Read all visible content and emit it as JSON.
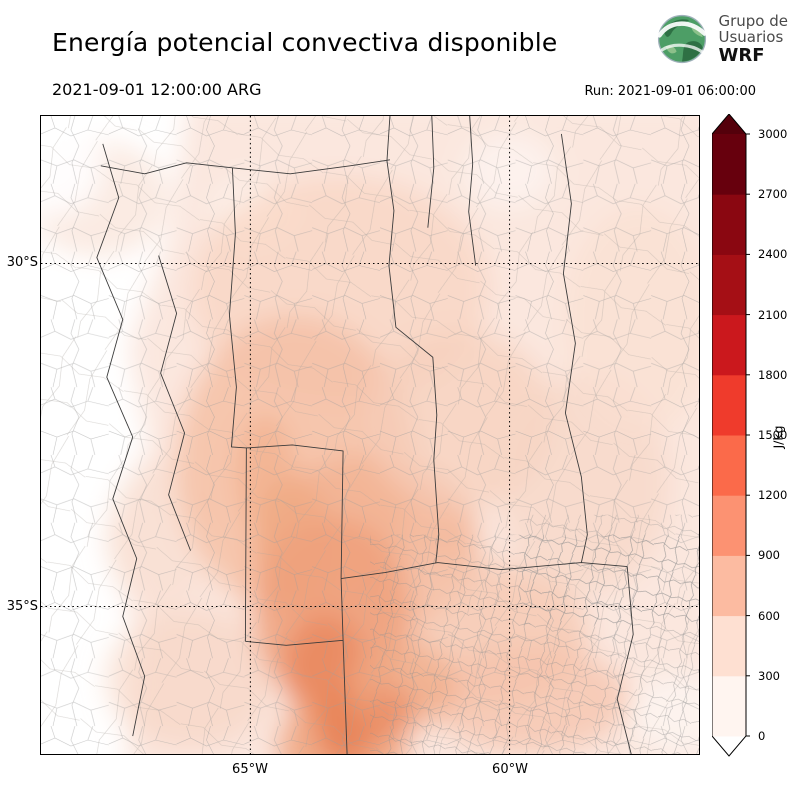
{
  "header": {
    "title": "Energía potencial convectiva disponible",
    "logo": {
      "line1": "Grupo de",
      "line2": "Usuarios",
      "line3": "WRF"
    }
  },
  "subheader": {
    "valid_time": "2021-09-01 12:00:00 ARG",
    "run_label": "Run: 2021-09-01 06:00:00"
  },
  "map": {
    "lat_ticks": [
      "30°S",
      "35°S"
    ],
    "lon_ticks": [
      "65°W",
      "60°W"
    ]
  },
  "colorbar": {
    "unit": "J/kg",
    "ticks": [
      "0",
      "300",
      "600",
      "900",
      "1200",
      "1500",
      "1800",
      "2100",
      "2400",
      "2700",
      "3000"
    ],
    "colors": [
      "#fff5f0",
      "#fee0d2",
      "#fcbba1",
      "#fc9272",
      "#fb6a4a",
      "#ef3b2c",
      "#cb181d",
      "#a50f15",
      "#8a0711",
      "#67000d"
    ],
    "under_color": "#ffffff",
    "over_color": "#54000b"
  },
  "chart_data": {
    "type": "heatmap",
    "title": "Energía potencial convectiva disponible",
    "variable_unit": "J/kg",
    "levels": [
      0,
      300,
      600,
      900,
      1200,
      1500,
      1800,
      2100,
      2400,
      2700,
      3000
    ],
    "visible_lat_lines": [
      "30°S",
      "35°S"
    ],
    "visible_lon_lines": [
      "65°W",
      "60°W"
    ],
    "valid_time": "2021-09-01 12:00:00 ARG",
    "run_time": "Run: 2021-09-01 06:00:00"
  }
}
